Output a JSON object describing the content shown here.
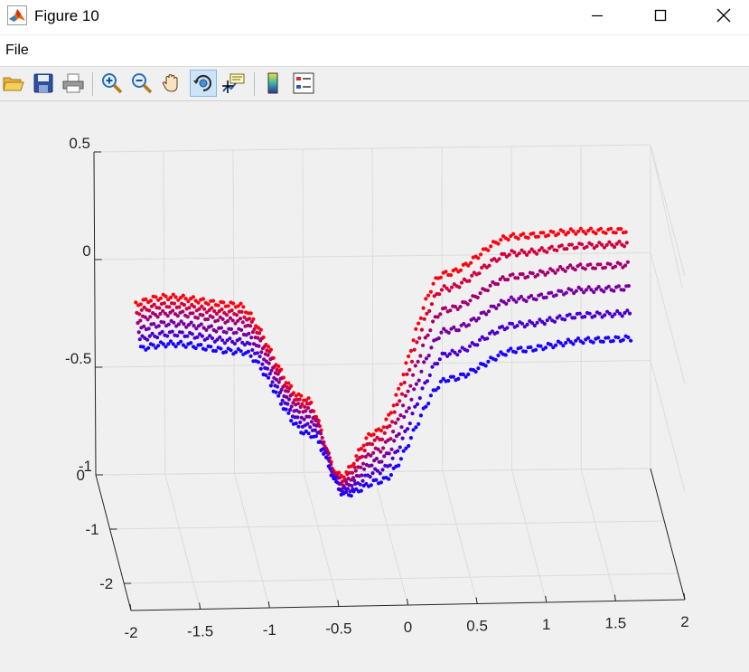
{
  "window": {
    "title": "Figure 10",
    "controls": [
      "minimize",
      "maximize",
      "close"
    ]
  },
  "menu": {
    "file_label": "File"
  },
  "toolbar": {
    "buttons": [
      {
        "name": "open-icon",
        "active": false
      },
      {
        "name": "save-icon",
        "active": false
      },
      {
        "name": "print-icon",
        "active": false
      },
      {
        "name": "zoom-in-icon",
        "active": false
      },
      {
        "name": "zoom-out-icon",
        "active": false
      },
      {
        "name": "pan-icon",
        "active": false
      },
      {
        "name": "rotate-3d-icon",
        "active": true
      },
      {
        "name": "data-cursor-icon",
        "active": false
      },
      {
        "name": "colorbar-icon",
        "active": false
      },
      {
        "name": "legend-icon",
        "active": false
      }
    ]
  },
  "chart_data": {
    "type": "scatter",
    "projection": "3d",
    "z_ticks": [
      "0.5",
      "0",
      "-0.5",
      "-1"
    ],
    "y_ticks": [
      "0",
      "-1",
      "-2"
    ],
    "x_ticks": [
      "-2",
      "-1.5",
      "-1",
      "-0.5",
      "0",
      "0.5",
      "1",
      "1.5",
      "2"
    ],
    "x_range": [
      -2,
      2
    ],
    "y_range": [
      -2.5,
      0
    ],
    "z_range": [
      -1,
      0.5
    ],
    "grid": true,
    "colormap": {
      "low": "#1a00ff",
      "high": "#ff0010"
    },
    "series": [
      {
        "depth": 0.0,
        "x": [
          -2,
          -1.5,
          -1,
          -0.5,
          -0.25,
          0,
          0.5,
          1,
          1.5,
          2
        ],
        "z": [
          -0.22,
          -0.14,
          -0.18,
          -0.62,
          -0.98,
          -0.78,
          -0.05,
          0.12,
          0.14,
          0.14
        ]
      },
      {
        "depth": 0.2,
        "x": [
          -2,
          -1.5,
          -1,
          -0.5,
          -0.25,
          0,
          0.5,
          1,
          1.5,
          2
        ],
        "z": [
          -0.24,
          -0.16,
          -0.2,
          -0.63,
          -0.98,
          -0.8,
          -0.1,
          0.06,
          0.09,
          0.1
        ]
      },
      {
        "depth": 0.4,
        "x": [
          -2,
          -1.5,
          -1,
          -0.5,
          -0.25,
          0,
          0.5,
          1,
          1.5,
          2
        ],
        "z": [
          -0.26,
          -0.18,
          -0.22,
          -0.64,
          -0.98,
          -0.83,
          -0.18,
          -0.03,
          0.01,
          0.02
        ]
      },
      {
        "depth": 0.6,
        "x": [
          -2,
          -1.5,
          -1,
          -0.5,
          -0.25,
          0,
          0.5,
          1,
          1.5,
          2
        ],
        "z": [
          -0.28,
          -0.21,
          -0.25,
          -0.66,
          -0.98,
          -0.86,
          -0.26,
          -0.12,
          -0.08,
          -0.07
        ]
      },
      {
        "depth": 0.8,
        "x": [
          -2,
          -1.5,
          -1,
          -0.5,
          -0.25,
          0,
          0.5,
          1,
          1.5,
          2
        ],
        "z": [
          -0.3,
          -0.24,
          -0.28,
          -0.68,
          -0.98,
          -0.89,
          -0.35,
          -0.22,
          -0.18,
          -0.17
        ]
      },
      {
        "depth": 1.0,
        "x": [
          -2,
          -1.5,
          -1,
          -0.5,
          -0.25,
          0,
          0.5,
          1,
          1.5,
          2
        ],
        "z": [
          -0.32,
          -0.27,
          -0.31,
          -0.7,
          -0.98,
          -0.92,
          -0.45,
          -0.32,
          -0.28,
          -0.27
        ]
      }
    ]
  }
}
